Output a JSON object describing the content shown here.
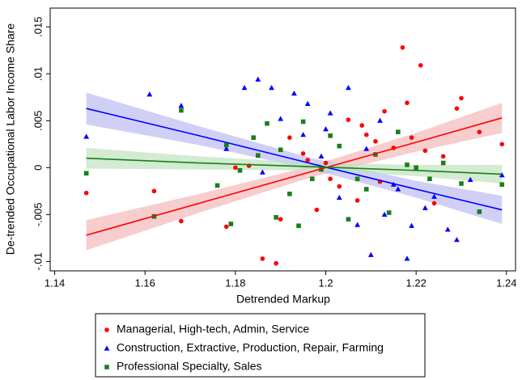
{
  "chart_data": {
    "type": "scatter",
    "xlabel": "Detrended Markup",
    "ylabel": "De-trended Occupational Labor Income Share",
    "xlim": [
      1.139,
      1.242
    ],
    "ylim": [
      -0.011,
      0.017
    ],
    "xticks": [
      1.14,
      1.16,
      1.18,
      1.2,
      1.22,
      1.24
    ],
    "yticks": [
      {
        "value": -0.01,
        "label": "-.01"
      },
      {
        "value": -0.005,
        "label": "-.005"
      },
      0,
      {
        "value": 0.005,
        "label": ".005"
      },
      {
        "value": 0.01,
        "label": ".01"
      },
      {
        "value": 0.015,
        "label": ".015"
      }
    ],
    "series": [
      {
        "name": "Managerial, High-tech, Admin, Service",
        "color": "#ff0000",
        "band_color": "#f4b8b8",
        "marker": "circle",
        "x": [
          1.147,
          1.162,
          1.168,
          1.178,
          1.186,
          1.189,
          1.183,
          1.19,
          1.192,
          1.195,
          1.198,
          1.2,
          1.203,
          1.205,
          1.207,
          1.209,
          1.211,
          1.212,
          1.213,
          1.215,
          1.217,
          1.218,
          1.219,
          1.221,
          1.222,
          1.224,
          1.226,
          1.229,
          1.23,
          1.234,
          1.239,
          1.18,
          1.196,
          1.201,
          1.208
        ],
        "y": [
          -0.0027,
          -0.0025,
          -0.0057,
          -0.0063,
          -0.0097,
          -0.0102,
          0.0002,
          -0.0055,
          0.0032,
          0.0015,
          -0.0045,
          0.0005,
          -0.002,
          0.0051,
          -0.0035,
          0.0035,
          0.0028,
          -0.0015,
          0.006,
          0.0021,
          0.0128,
          0.0069,
          0.0032,
          0.0109,
          0.0018,
          -0.0038,
          0.0012,
          0.0063,
          0.0074,
          0.0038,
          0.0025,
          0.0,
          0.0008,
          -0.0012,
          0.0045
        ],
        "fit": {
          "x": [
            1.147,
            1.172,
            1.197,
            1.22,
            1.239
          ],
          "y": [
            -0.0072,
            -0.0038,
            -0.0004,
            0.0027,
            0.0053
          ],
          "lower": [
            -0.0088,
            -0.0048,
            -0.001,
            0.0017,
            0.0037
          ],
          "upper": [
            -0.0056,
            -0.0028,
            0.0002,
            0.0037,
            0.0069
          ]
        }
      },
      {
        "name": "Construction, Extractive, Production, Repair, Farming",
        "color": "#0000ff",
        "band_color": "#bcbcf4",
        "marker": "triangle",
        "x": [
          1.147,
          1.161,
          1.168,
          1.178,
          1.182,
          1.185,
          1.188,
          1.19,
          1.193,
          1.196,
          1.199,
          1.201,
          1.203,
          1.205,
          1.207,
          1.209,
          1.21,
          1.213,
          1.215,
          1.216,
          1.218,
          1.219,
          1.222,
          1.224,
          1.227,
          1.229,
          1.232,
          1.239,
          1.186,
          1.195,
          1.2,
          1.212
        ],
        "y": [
          0.0033,
          0.0078,
          0.0066,
          0.002,
          0.0085,
          0.0094,
          0.0085,
          0.0052,
          0.0079,
          0.0068,
          0.0012,
          0.0058,
          -0.0032,
          0.0085,
          -0.0061,
          0.002,
          -0.0093,
          -0.005,
          -0.0018,
          -0.0023,
          -0.0097,
          -0.0062,
          -0.0043,
          -0.0031,
          -0.0066,
          -0.0077,
          -0.0013,
          -0.0008,
          -0.0005,
          0.0035,
          0.0041,
          0.005
        ],
        "fit": {
          "x": [
            1.147,
            1.172,
            1.197,
            1.22,
            1.239
          ],
          "y": [
            0.0063,
            0.0034,
            0.0004,
            -0.0023,
            -0.0045
          ],
          "lower": [
            0.0046,
            0.0024,
            -0.0002,
            -0.0032,
            -0.006
          ],
          "upper": [
            0.008,
            0.0044,
            0.001,
            -0.0014,
            -0.003
          ]
        }
      },
      {
        "name": "Professional Specialty, Sales",
        "color": "#1a7f1a",
        "band_color": "#bfe3bf",
        "marker": "square",
        "x": [
          1.147,
          1.162,
          1.168,
          1.176,
          1.178,
          1.179,
          1.181,
          1.185,
          1.187,
          1.189,
          1.19,
          1.192,
          1.195,
          1.197,
          1.199,
          1.201,
          1.203,
          1.205,
          1.207,
          1.209,
          1.211,
          1.214,
          1.216,
          1.218,
          1.22,
          1.223,
          1.226,
          1.23,
          1.234,
          1.239,
          1.184,
          1.194
        ],
        "y": [
          -0.0006,
          -0.0052,
          0.0061,
          -0.0019,
          0.0024,
          -0.006,
          -0.0003,
          0.0013,
          0.0047,
          -0.0053,
          0.0019,
          -0.0028,
          0.0049,
          -0.0012,
          -0.0002,
          0.0034,
          0.0023,
          -0.0055,
          -0.0012,
          -0.0023,
          0.0014,
          -0.0048,
          0.0038,
          0.0003,
          0.0,
          -0.0012,
          0.0005,
          -0.0017,
          -0.0047,
          -0.0018,
          0.0032,
          -0.0062
        ],
        "fit": {
          "x": [
            1.147,
            1.172,
            1.197,
            1.22,
            1.239
          ],
          "y": [
            0.001,
            0.0005,
            0.0001,
            -0.0003,
            -0.0007
          ],
          "lower": [
            -0.0001,
            -0.0002,
            -0.0003,
            -0.0009,
            -0.0017
          ],
          "upper": [
            0.0021,
            0.0012,
            0.0005,
            0.0003,
            0.0003
          ]
        }
      }
    ]
  }
}
